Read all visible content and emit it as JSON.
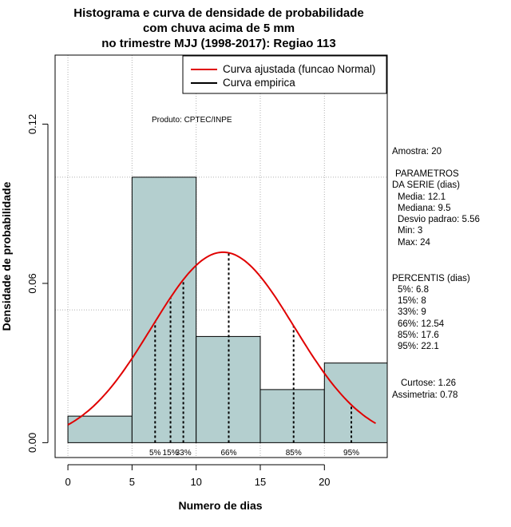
{
  "chart_data": {
    "type": "histogram",
    "title_lines": [
      "Histograma e curva de densidade de probabilidade",
      "com chuva acima de 5 mm",
      "no trimestre MJJ (1998-2017): Regiao 113"
    ],
    "xlabel": "Numero de dias",
    "ylabel": "Densidade de probabilidade",
    "xlim": [
      -1,
      24.9
    ],
    "ylim": [
      -0.0056,
      0.146
    ],
    "x_ticks": [
      0,
      5,
      10,
      15,
      20
    ],
    "y_ticks": [
      0.0,
      0.06,
      0.12
    ],
    "y_tick_labels": [
      "0.00",
      "0.06",
      "0.12"
    ],
    "grid_x": [
      0,
      5,
      10,
      15,
      20
    ],
    "grid_y": [
      0.05,
      0.1
    ],
    "bins": [
      {
        "x0": 0,
        "x1": 5,
        "density": 0.01
      },
      {
        "x0": 5,
        "x1": 10,
        "density": 0.1
      },
      {
        "x0": 10,
        "x1": 15,
        "density": 0.04
      },
      {
        "x0": 15,
        "x1": 20,
        "density": 0.02
      },
      {
        "x0": 20,
        "x1": 25,
        "density": 0.03
      }
    ],
    "normal_fit": {
      "mean": 12.1,
      "sd": 5.56,
      "x_from": 0,
      "x_to": 24
    },
    "percentile_lines": [
      {
        "label": "5%",
        "x": 6.8
      },
      {
        "label": "15%",
        "x": 8
      },
      {
        "label": "33%",
        "x": 9
      },
      {
        "label": "66%",
        "x": 12.54
      },
      {
        "label": "85%",
        "x": 17.6
      },
      {
        "label": "95%",
        "x": 22.1
      }
    ],
    "percentile_label_text": [
      "5%",
      "15%",
      "33%",
      "66%",
      "85%",
      "95%"
    ],
    "legend": {
      "placement": "top-right",
      "items": [
        {
          "label": "Curva ajustada (funcao Normal)",
          "color": "#e00000"
        },
        {
          "label": "Curva empirica",
          "color": "#000000"
        }
      ]
    },
    "annotation": "Produto: CPTEC/INPE",
    "colors": {
      "bar_fill": "#b4cfcf",
      "curve": "#e00000",
      "grid": "#b0b0b0"
    }
  },
  "side_panel": {
    "amostra": "Amostra: 20",
    "param_title_1": "PARAMETROS",
    "param_title_2": "DA SERIE (dias)",
    "media": "Media: 12.1",
    "mediana": "Mediana: 9.5",
    "desvio": "Desvio padrao: 5.56",
    "min": "Min: 3",
    "max": "Max: 24",
    "perc_title": "PERCENTIS (dias)",
    "p5": "5%: 6.8",
    "p15": "15%: 8",
    "p33": "33%: 9",
    "p66": "66%: 12.54",
    "p85": "85%: 17.6",
    "p95": "95%: 22.1",
    "curtose": "Curtose: 1.26",
    "assimetria": "Assimetria: 0.78"
  }
}
